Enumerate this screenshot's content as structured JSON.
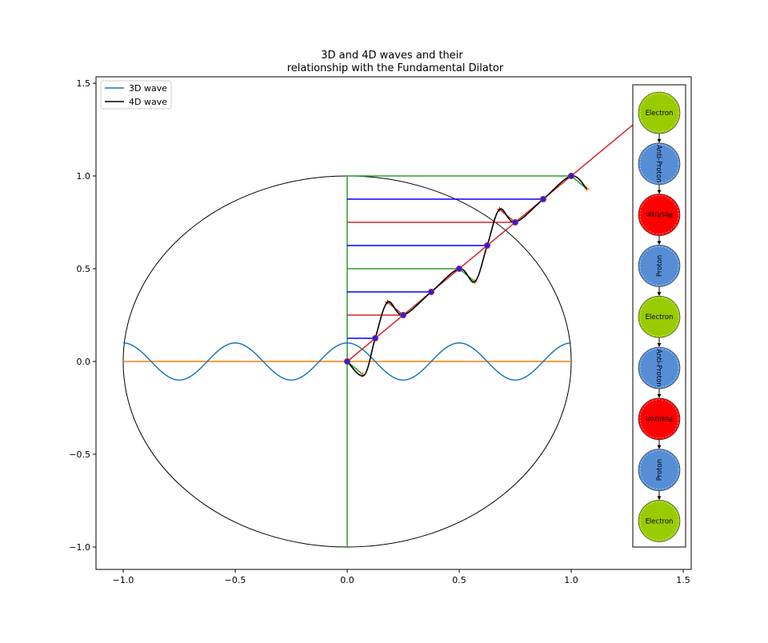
{
  "chart_data": {
    "type": "line",
    "title": "3D and 4D waves and their\nrelationship with the Fundamental Dilator",
    "xlim": [
      -1.12,
      1.53
    ],
    "ylim": [
      -1.12,
      1.53
    ],
    "xticks": [
      -1.0,
      -0.5,
      0.0,
      0.5,
      1.0,
      1.5
    ],
    "yticks": [
      -1.0,
      -0.5,
      0.0,
      0.5,
      1.0,
      1.5
    ],
    "xtick_labels": [
      "−1.0",
      "−0.5",
      "0.0",
      "0.5",
      "1.0",
      "1.5"
    ],
    "ytick_labels": [
      "−1.0",
      "−0.5",
      "0.0",
      "0.5",
      "1.0",
      "1.5"
    ],
    "grid": false,
    "legend": {
      "position": "top-left",
      "entries": [
        {
          "label": "3D wave",
          "color": "#1f77b4"
        },
        {
          "label": "4D wave",
          "color": "#000000"
        }
      ]
    },
    "series": [
      {
        "name": "3D wave",
        "color": "#1f77b4",
        "function": "0.1*cos(4*pi*x)",
        "x_range": [
          -1.0,
          1.0
        ]
      },
      {
        "name": "4D wave",
        "color": "#000000",
        "points": [
          [
            0,
            0
          ],
          [
            0.075,
            -0.075
          ],
          [
            0.125,
            0.125
          ],
          [
            0.18,
            0.32
          ],
          [
            0.25,
            0.25
          ],
          [
            0.375,
            0.375
          ],
          [
            0.5,
            0.5
          ],
          [
            0.57,
            0.43
          ],
          [
            0.625,
            0.625
          ],
          [
            0.68,
            0.82
          ],
          [
            0.75,
            0.75
          ],
          [
            0.875,
            0.875
          ],
          [
            1.0,
            1.0
          ],
          [
            1.07,
            0.93
          ]
        ]
      }
    ],
    "circle": {
      "center": [
        0,
        0
      ],
      "radius": 1.0,
      "color": "#000000"
    },
    "orange_line": {
      "from": [
        -1.0,
        0.0
      ],
      "to": [
        1.0,
        0.0
      ],
      "color": "#ff7f0e"
    },
    "vertical_line": {
      "x": 0.0,
      "from": -1.0,
      "to": 1.0,
      "color": "#2ca02c"
    },
    "diagonal": {
      "from": [
        0.0,
        0.0
      ],
      "to": [
        1.28,
        1.28
      ],
      "color": "#d62728"
    },
    "h_lines": [
      {
        "y": 0.125,
        "x_end": 0.125,
        "color": "#0000ff"
      },
      {
        "y": 0.25,
        "x_end": 0.25,
        "color": "#d62728"
      },
      {
        "y": 0.375,
        "x_end": 0.375,
        "color": "#0000ff"
      },
      {
        "y": 0.5,
        "x_end": 0.5,
        "color": "#2ca02c"
      },
      {
        "y": 0.625,
        "x_end": 0.625,
        "color": "#0000ff"
      },
      {
        "y": 0.75,
        "x_end": 0.75,
        "color": "#d62728"
      },
      {
        "y": 0.875,
        "x_end": 0.875,
        "color": "#0000ff"
      },
      {
        "y": 1.0,
        "x_end": 1.0,
        "color": "#2ca02c"
      }
    ],
    "points": [
      [
        0,
        0
      ],
      [
        0.125,
        0.125
      ],
      [
        0.25,
        0.25
      ],
      [
        0.375,
        0.375
      ],
      [
        0.5,
        0.5
      ],
      [
        0.625,
        0.625
      ],
      [
        0.75,
        0.75
      ],
      [
        0.875,
        0.875
      ],
      [
        1.0,
        1.0
      ]
    ],
    "tips": [
      {
        "from": [
          0,
          0
        ],
        "to": [
          0.07,
          -0.07
        ],
        "color": "#2ca02c",
        "marker_color": "#ff7f0e"
      },
      {
        "from": [
          0.25,
          0.25
        ],
        "to": [
          0.18,
          0.32
        ],
        "color": "#d62728",
        "marker_color": "#d62728"
      },
      {
        "from": [
          0.5,
          0.5
        ],
        "to": [
          0.57,
          0.43
        ],
        "color": "#2ca02c",
        "marker_color": "#ff7f0e"
      },
      {
        "from": [
          0.75,
          0.75
        ],
        "to": [
          0.68,
          0.82
        ],
        "color": "#d62728",
        "marker_color": "#d62728"
      },
      {
        "from": [
          1.0,
          1.0
        ],
        "to": [
          1.07,
          0.93
        ],
        "color": "#2ca02c",
        "marker_color": "#ff7f0e"
      }
    ],
    "particle_chain": [
      {
        "label": "Electron",
        "color": "#99cc00",
        "rotation": 0
      },
      {
        "label": "Anti-Proton",
        "color": "#558ed5",
        "rotation": 90
      },
      {
        "label": "Positron",
        "color": "#ff0000",
        "rotation": 180
      },
      {
        "label": "Proton",
        "color": "#558ed5",
        "rotation": -90
      },
      {
        "label": "Electron",
        "color": "#99cc00",
        "rotation": 0
      },
      {
        "label": "Anti-Proton",
        "color": "#558ed5",
        "rotation": 90
      },
      {
        "label": "Positron",
        "color": "#ff0000",
        "rotation": 180
      },
      {
        "label": "Proton",
        "color": "#558ed5",
        "rotation": -90
      },
      {
        "label": "Electron",
        "color": "#99cc00",
        "rotation": 0
      }
    ]
  }
}
